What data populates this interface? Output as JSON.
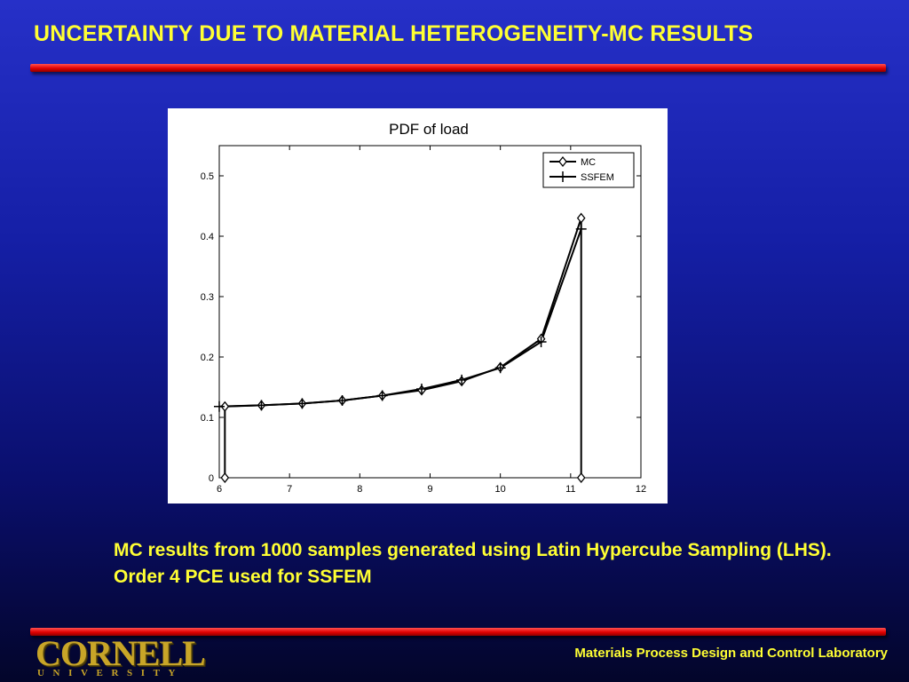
{
  "slide": {
    "title": "UNCERTAINTY DUE TO MATERIAL HETEROGENEITY-MC RESULTS",
    "caption": "MC results from 1000 samples generated using Latin Hypercube Sampling (LHS). Order 4 PCE used for SSFEM",
    "logo_word": "CORNELL",
    "logo_sub": "UNIVERSITY",
    "footer_lab": "Materials Process Design and Control Laboratory"
  },
  "colors": {
    "title_text": "#ffff33",
    "rule": "#e00000",
    "logo": "#c8a528"
  },
  "chart_data": {
    "type": "line",
    "title": "PDF of load",
    "xlabel": "",
    "ylabel": "",
    "xlim": [
      6,
      12
    ],
    "ylim": [
      0,
      0.55
    ],
    "xticks": [
      6,
      7,
      8,
      9,
      10,
      11,
      12
    ],
    "yticks": [
      0,
      0.1,
      0.2,
      0.3,
      0.4,
      0.5
    ],
    "xtick_labels": [
      "6",
      "7",
      "8",
      "9",
      "10",
      "11",
      "12"
    ],
    "ytick_labels": [
      "0",
      "0.1",
      "0.2",
      "0.3",
      "0.4",
      "0.5"
    ],
    "grid": false,
    "legend_position": "top-right",
    "series": [
      {
        "name": "MC",
        "marker": "diamond",
        "x": [
          6.08,
          6.08,
          6.6,
          7.18,
          7.75,
          8.32,
          8.88,
          9.45,
          10.0,
          10.58,
          11.15,
          11.15
        ],
        "y": [
          0,
          0.118,
          0.12,
          0.123,
          0.128,
          0.136,
          0.145,
          0.16,
          0.183,
          0.23,
          0.43,
          0
        ]
      },
      {
        "name": "SSFEM",
        "marker": "plus",
        "x": [
          6.0,
          6.6,
          7.18,
          7.75,
          8.32,
          8.88,
          9.45,
          10.0,
          10.58,
          11.15
        ],
        "y": [
          0.118,
          0.12,
          0.123,
          0.128,
          0.136,
          0.147,
          0.162,
          0.182,
          0.225,
          0.412
        ]
      }
    ]
  }
}
